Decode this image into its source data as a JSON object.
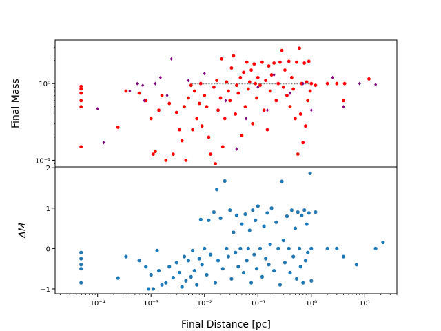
{
  "chart_data": [
    {
      "type": "scatter",
      "panel": "top",
      "xlabel": "",
      "ylabel": "Final Mass",
      "xscale": "log",
      "yscale": "log",
      "xlim": [
        1.6e-05,
        40
      ],
      "ylim": [
        0.082,
        3.7
      ],
      "ytick_labels": [
        "10⁻¹",
        "10⁰"
      ],
      "ytick_values": [
        0.1,
        1
      ],
      "grid": false,
      "colors": {
        "red": "#ff0000",
        "purple": "#800080",
        "gray": "#808080"
      },
      "series": [
        {
          "color": "#ff0000",
          "points": [
            [
              4.9e-05,
              0.15
            ],
            [
              4.9e-05,
              0.5
            ],
            [
              4.9e-05,
              0.6
            ],
            [
              4.9e-05,
              0.75
            ],
            [
              4.9e-05,
              0.85
            ],
            [
              4.9e-05,
              0.92
            ],
            [
              0.00024,
              0.27
            ],
            [
              0.00034,
              0.8
            ],
            [
              0.0006,
              0.75
            ],
            [
              0.0008,
              0.6
            ],
            [
              0.001,
              0.35
            ],
            [
              0.0011,
              0.12
            ],
            [
              0.0012,
              0.13
            ],
            [
              0.0014,
              0.45
            ],
            [
              0.0016,
              0.7
            ],
            [
              0.0019,
              0.1
            ],
            [
              0.0022,
              0.55
            ],
            [
              0.0026,
              0.12
            ],
            [
              0.003,
              0.42
            ],
            [
              0.0034,
              0.25
            ],
            [
              0.0038,
              0.18
            ],
            [
              0.0042,
              0.5
            ],
            [
              0.0045,
              0.1
            ],
            [
              0.005,
              0.65
            ],
            [
              0.0056,
              0.95
            ],
            [
              0.006,
              0.25
            ],
            [
              0.0065,
              0.8
            ],
            [
              0.0072,
              0.35
            ],
            [
              0.008,
              0.55
            ],
            [
              0.0085,
              1.0
            ],
            [
              0.009,
              0.28
            ],
            [
              0.01,
              0.7
            ],
            [
              0.011,
              0.5
            ],
            [
              0.012,
              0.2
            ],
            [
              0.013,
              0.12
            ],
            [
              0.015,
              0.9
            ],
            [
              0.016,
              0.09
            ],
            [
              0.017,
              1.1
            ],
            [
              0.018,
              0.45
            ],
            [
              0.02,
              0.65
            ],
            [
              0.021,
              2.1
            ],
            [
              0.022,
              0.15
            ],
            [
              0.024,
              0.35
            ],
            [
              0.026,
              1.05
            ],
            [
              0.028,
              0.8
            ],
            [
              0.03,
              0.6
            ],
            [
              0.032,
              1.6
            ],
            [
              0.035,
              2.3
            ],
            [
              0.038,
              0.4
            ],
            [
              0.04,
              0.95
            ],
            [
              0.043,
              0.75
            ],
            [
              0.047,
              1.2
            ],
            [
              0.05,
              0.21
            ],
            [
              0.054,
              1.4
            ],
            [
              0.058,
              0.5
            ],
            [
              0.062,
              1.9
            ],
            [
              0.066,
              0.85
            ],
            [
              0.07,
              1.05
            ],
            [
              0.075,
              1.5
            ],
            [
              0.08,
              0.3
            ],
            [
              0.085,
              1.8
            ],
            [
              0.09,
              1.0
            ],
            [
              0.095,
              0.65
            ],
            [
              0.1,
              1.2
            ],
            [
              0.11,
              0.95
            ],
            [
              0.12,
              1.9
            ],
            [
              0.13,
              0.45
            ],
            [
              0.14,
              1.1
            ],
            [
              0.15,
              0.25
            ],
            [
              0.16,
              1.7
            ],
            [
              0.17,
              0.8
            ],
            [
              0.18,
              1.3
            ],
            [
              0.2,
              1.85
            ],
            [
              0.22,
              0.6
            ],
            [
              0.24,
              1.0
            ],
            [
              0.26,
              1.9
            ],
            [
              0.28,
              2.7
            ],
            [
              0.3,
              0.9
            ],
            [
              0.32,
              1.5
            ],
            [
              0.35,
              0.7
            ],
            [
              0.38,
              1.95
            ],
            [
              0.4,
              0.5
            ],
            [
              0.43,
              1.2
            ],
            [
              0.46,
              0.85
            ],
            [
              0.5,
              0.35
            ],
            [
              0.53,
              1.9
            ],
            [
              0.56,
              0.12
            ],
            [
              0.6,
              2.9
            ],
            [
              0.63,
              0.4
            ],
            [
              0.66,
              1.0
            ],
            [
              0.7,
              0.17
            ],
            [
              0.74,
              1.85
            ],
            [
              0.78,
              0.28
            ],
            [
              0.82,
              1.05
            ],
            [
              0.86,
              0.6
            ],
            [
              0.9,
              1.95
            ],
            [
              0.95,
              0.8
            ],
            [
              1.0,
              1.0
            ],
            [
              1.2,
              0.95
            ],
            [
              2.0,
              1.0
            ],
            [
              3.0,
              1.0
            ],
            [
              4.0,
              0.6
            ],
            [
              4.2,
              1.0
            ],
            [
              12.0,
              1.15
            ]
          ]
        },
        {
          "color": "#800080",
          "points": [
            [
              0.0001,
              0.47
            ],
            [
              0.00013,
              0.17
            ],
            [
              0.0004,
              0.8
            ],
            [
              0.00055,
              1.0
            ],
            [
              0.0007,
              0.95
            ],
            [
              0.00075,
              0.6
            ],
            [
              0.0012,
              1.0
            ],
            [
              0.0015,
              1.2
            ],
            [
              0.002,
              0.7
            ],
            [
              0.0024,
              2.1
            ],
            [
              0.005,
              1.1
            ],
            [
              0.01,
              1.35
            ],
            [
              0.025,
              0.6
            ],
            [
              0.04,
              0.14
            ],
            [
              0.06,
              0.35
            ],
            [
              0.1,
              0.9
            ],
            [
              0.15,
              0.45
            ],
            [
              0.2,
              1.3
            ],
            [
              0.4,
              0.75
            ],
            [
              0.7,
              1.0
            ],
            [
              1.0,
              0.45
            ],
            [
              2.5,
              1.2
            ],
            [
              4.0,
              0.5
            ],
            [
              8.0,
              1.0
            ],
            [
              16.0,
              0.97
            ]
          ]
        }
      ],
      "reference_line": {
        "color": "#808080",
        "y": 1.0,
        "x_range": [
          0.0058,
          1.0
        ]
      }
    },
    {
      "type": "scatter",
      "panel": "bottom",
      "xlabel": "Final Distance [pc]",
      "ylabel": "ΔM",
      "xscale": "log",
      "yscale": "linear",
      "xlim": [
        1.6e-05,
        40
      ],
      "ylim": [
        -1.12,
        2.02
      ],
      "xtick_labels": [
        "10⁻⁴",
        "10⁻³",
        "10⁻²",
        "10⁻¹",
        "10⁰",
        "10¹"
      ],
      "xtick_values": [
        0.0001,
        0.001,
        0.01,
        0.1,
        1,
        10
      ],
      "ytick_labels": [
        "−1",
        "0",
        "1",
        "2"
      ],
      "ytick_values": [
        -1,
        0,
        1,
        2
      ],
      "grid": false,
      "colors": {
        "blue": "#1f77b4"
      },
      "series": [
        {
          "color": "#1f77b4",
          "points": [
            [
              4.9e-05,
              -0.85
            ],
            [
              4.9e-05,
              -0.5
            ],
            [
              4.9e-05,
              -0.4
            ],
            [
              4.9e-05,
              -0.25
            ],
            [
              4.9e-05,
              -0.1
            ],
            [
              0.00024,
              -0.73
            ],
            [
              0.00034,
              -0.2
            ],
            [
              0.0006,
              -0.3
            ],
            [
              0.0008,
              -0.45
            ],
            [
              0.0009,
              -1.0
            ],
            [
              0.001,
              -0.65
            ],
            [
              0.0011,
              -1.0
            ],
            [
              0.0013,
              -0.05
            ],
            [
              0.0014,
              -0.55
            ],
            [
              0.0016,
              -0.9
            ],
            [
              0.0019,
              -0.85
            ],
            [
              0.0022,
              -0.45
            ],
            [
              0.0026,
              -0.72
            ],
            [
              0.003,
              -0.35
            ],
            [
              0.0034,
              -0.6
            ],
            [
              0.0038,
              -0.95
            ],
            [
              0.0042,
              -0.2
            ],
            [
              0.0045,
              -0.8
            ],
            [
              0.005,
              -0.3
            ],
            [
              0.0056,
              -0.7
            ],
            [
              0.006,
              -0.05
            ],
            [
              0.0065,
              -0.55
            ],
            [
              0.0072,
              -0.9
            ],
            [
              0.008,
              -0.25
            ],
            [
              0.0085,
              0.72
            ],
            [
              0.009,
              -0.4
            ],
            [
              0.01,
              0.0
            ],
            [
              0.011,
              -0.65
            ],
            [
              0.012,
              0.7
            ],
            [
              0.013,
              -0.15
            ],
            [
              0.015,
              0.9
            ],
            [
              0.016,
              -0.85
            ],
            [
              0.017,
              1.46
            ],
            [
              0.018,
              -0.3
            ],
            [
              0.02,
              0.75
            ],
            [
              0.022,
              -0.5
            ],
            [
              0.024,
              1.67
            ],
            [
              0.026,
              0.0
            ],
            [
              0.028,
              -0.2
            ],
            [
              0.03,
              0.95
            ],
            [
              0.032,
              -0.75
            ],
            [
              0.035,
              0.4
            ],
            [
              0.038,
              -0.1
            ],
            [
              0.04,
              0.82
            ],
            [
              0.043,
              -0.45
            ],
            [
              0.047,
              0.0
            ],
            [
              0.05,
              0.6
            ],
            [
              0.054,
              -0.6
            ],
            [
              0.058,
              0.85
            ],
            [
              0.062,
              -0.3
            ],
            [
              0.066,
              0.0
            ],
            [
              0.07,
              0.45
            ],
            [
              0.075,
              -0.85
            ],
            [
              0.08,
              0.95
            ],
            [
              0.085,
              -0.15
            ],
            [
              0.09,
              0.7
            ],
            [
              0.095,
              -0.5
            ],
            [
              0.1,
              1.05
            ],
            [
              0.11,
              0.0
            ],
            [
              0.12,
              -0.7
            ],
            [
              0.13,
              0.55
            ],
            [
              0.14,
              -0.25
            ],
            [
              0.15,
              0.88
            ],
            [
              0.16,
              -0.4
            ],
            [
              0.17,
              0.1
            ],
            [
              0.18,
              1.0
            ],
            [
              0.2,
              -0.55
            ],
            [
              0.22,
              0.65
            ],
            [
              0.24,
              0.0
            ],
            [
              0.26,
              -0.9
            ],
            [
              0.28,
              1.66
            ],
            [
              0.3,
              0.2
            ],
            [
              0.32,
              -0.35
            ],
            [
              0.35,
              0.8
            ],
            [
              0.38,
              0.0
            ],
            [
              0.4,
              -0.6
            ],
            [
              0.43,
              0.95
            ],
            [
              0.46,
              -0.2
            ],
            [
              0.5,
              0.5
            ],
            [
              0.53,
              -0.75
            ],
            [
              0.56,
              0.9
            ],
            [
              0.6,
              0.0
            ],
            [
              0.63,
              -0.45
            ],
            [
              0.66,
              0.82
            ],
            [
              0.7,
              -0.85
            ],
            [
              0.74,
              0.95
            ],
            [
              0.78,
              -0.3
            ],
            [
              0.82,
              0.6
            ],
            [
              0.86,
              -0.1
            ],
            [
              0.9,
              0.88
            ],
            [
              0.95,
              1.86
            ],
            [
              1.0,
              0.0
            ],
            [
              1.0,
              -0.8
            ],
            [
              1.2,
              0.9
            ],
            [
              2.0,
              0.0
            ],
            [
              3.0,
              0.0
            ],
            [
              4.0,
              -0.2
            ],
            [
              7.0,
              -0.4
            ],
            [
              16.0,
              0.0
            ],
            [
              22.0,
              0.15
            ]
          ]
        }
      ]
    }
  ]
}
